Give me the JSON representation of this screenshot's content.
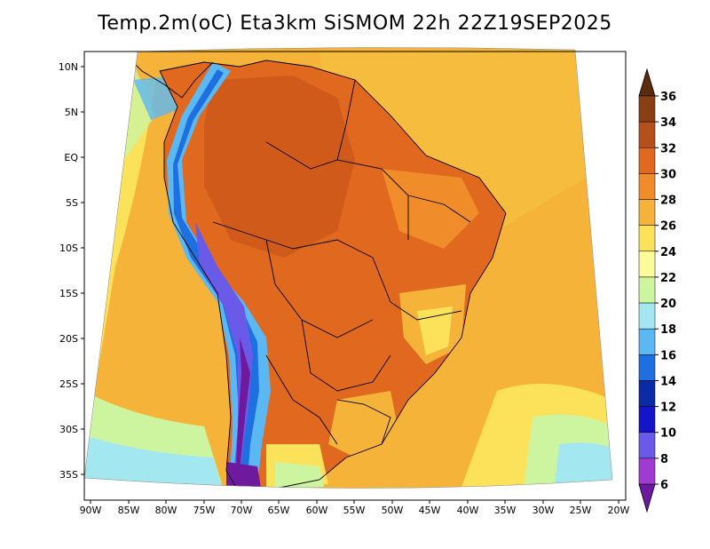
{
  "title": "Temp.2m(oC) Eta3km SiSMOM 22h 22Z19SEP2025",
  "lat_labels": [
    "10N",
    "5N",
    "EQ",
    "5S",
    "10S",
    "15S",
    "20S",
    "25S",
    "30S",
    "35S"
  ],
  "lon_labels": [
    "90W",
    "85W",
    "80W",
    "75W",
    "70W",
    "65W",
    "60W",
    "55W",
    "50W",
    "45W",
    "40W",
    "35W",
    "30W",
    "25W",
    "20W"
  ],
  "colorbar": {
    "labels": [
      "36",
      "34",
      "32",
      "30",
      "28",
      "26",
      "24",
      "22",
      "20",
      "18",
      "16",
      "14",
      "12",
      "10",
      "8",
      "6"
    ],
    "colors": [
      "#5a2c0e",
      "#8a3f12",
      "#b4501a",
      "#e0681f",
      "#f08c2a",
      "#f5b33a",
      "#fbe25a",
      "#fbfb9c",
      "#cdf5a0",
      "#a3e8f0",
      "#5cb8f2",
      "#1e6fe0",
      "#0a2aa6",
      "#1414c8",
      "#6a5ae8",
      "#a03ad0",
      "#6e1a9e"
    ]
  },
  "legend": {
    "levels": [
      "6",
      "8",
      "10",
      "12",
      "14",
      "16",
      "18",
      "20",
      "22",
      "24",
      "26",
      "28",
      "30",
      "32",
      "34",
      "36"
    ]
  }
}
